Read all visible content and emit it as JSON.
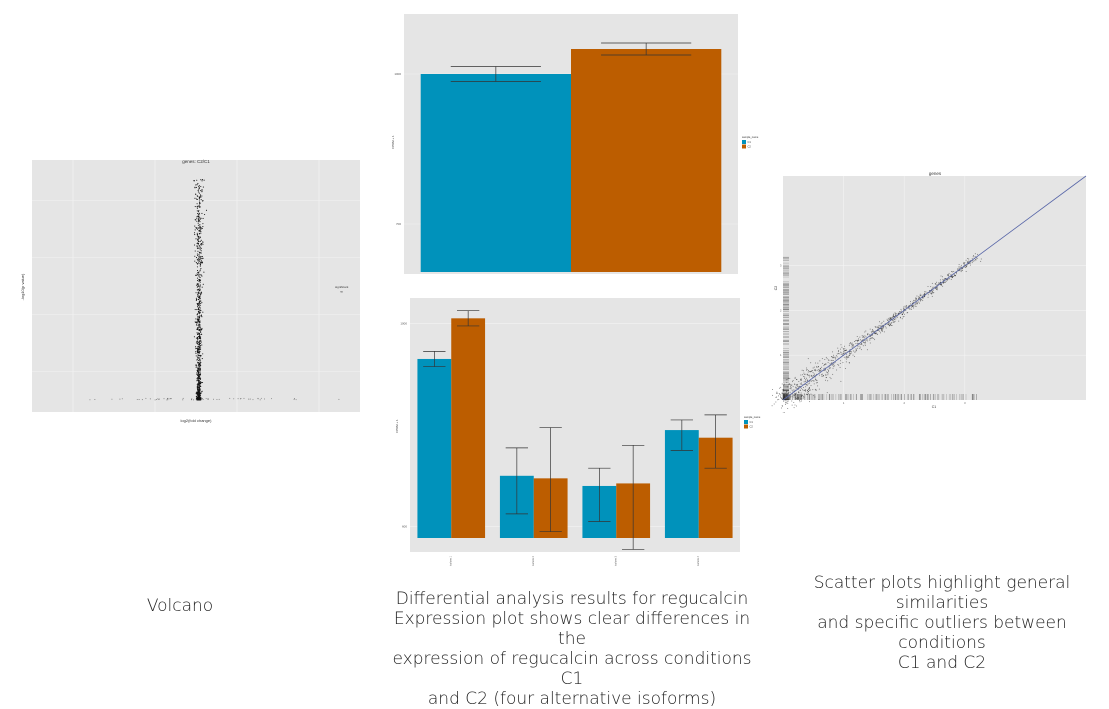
{
  "colors": {
    "c1": "#0092bb",
    "c2": "#bc5d00",
    "panel_bg": "#e5e5e5",
    "grid": "#f4f4f4",
    "point": "#111111",
    "diag": "#5866a8",
    "err": "#333333"
  },
  "captions": {
    "volcano": "Volcano",
    "bar_lines": [
      "Differential analysis results for regucalcin",
      "Expression plot shows clear differences in the",
      "expression of regucalcin across conditions C1",
      "and C2 (four alternative isoforms)"
    ],
    "scatter_lines": [
      "Scatter plots highlight general similarities",
      "and specific outliers between conditions",
      "C1 and C2"
    ]
  },
  "chart_data": [
    {
      "id": "volcano",
      "type": "scatter",
      "title": "genes: C2/C1",
      "xlabel": "log2(fold change)",
      "ylabel": "-log10(p value)",
      "xlim": [
        -20,
        20
      ],
      "ylim": [
        0,
        4
      ],
      "legend": {
        "title": "significant",
        "entries": [
          "no"
        ],
        "placement": "right"
      },
      "note": "approximate distribution: dense vertical column of points near log2 fold change 0, p values spanning 0 to ~3.9"
    },
    {
      "id": "gene-bar",
      "type": "bar",
      "title": "",
      "xlabel": "",
      "ylabel": "FPKM + 1",
      "categories": [
        "regucalcin"
      ],
      "series": [
        {
          "name": "C1",
          "values": [
            1000
          ],
          "error_low": [
            985
          ],
          "error_high": [
            1015
          ]
        },
        {
          "name": "C2",
          "values": [
            1050
          ],
          "error_low": [
            1038
          ],
          "error_high": [
            1062
          ]
        }
      ],
      "ylim": [
        600,
        1120
      ],
      "y_ticks": [
        700,
        1000
      ],
      "legend": {
        "title": "sample_name",
        "entries": [
          "C1",
          "C2"
        ],
        "placement": "right"
      }
    },
    {
      "id": "isoform-bar",
      "type": "bar",
      "title": "",
      "xlabel": "",
      "ylabel": "FPKM + 1",
      "categories": [
        "isoform 1",
        "isoform 2",
        "isoform 3",
        "isoform 4"
      ],
      "series": [
        {
          "name": "C1",
          "values": [
            930,
            700,
            680,
            790
          ],
          "error_low": [
            915,
            625,
            610,
            750
          ],
          "error_high": [
            945,
            755,
            715,
            810
          ]
        },
        {
          "name": "C2",
          "values": [
            1010,
            695,
            685,
            775
          ],
          "error_low": [
            995,
            590,
            555,
            715
          ],
          "error_high": [
            1025,
            795,
            760,
            820
          ]
        }
      ],
      "ylim": [
        550,
        1050
      ],
      "y_ticks": [
        600,
        1000
      ],
      "legend": {
        "title": "sample_name",
        "entries": [
          "C1",
          "C2"
        ],
        "placement": "right"
      }
    },
    {
      "id": "scatter",
      "type": "scatter",
      "title": "genes",
      "xlabel": "C1",
      "ylabel": "C2",
      "xlim": [
        0,
        5
      ],
      "ylim": [
        0,
        5
      ],
      "x_ticks": [
        1,
        2,
        3
      ],
      "y_ticks": [
        1,
        2,
        3
      ],
      "note": "approximate distribution: points tightly clustered along the y = x diagonal, with a reference line y = x"
    }
  ]
}
